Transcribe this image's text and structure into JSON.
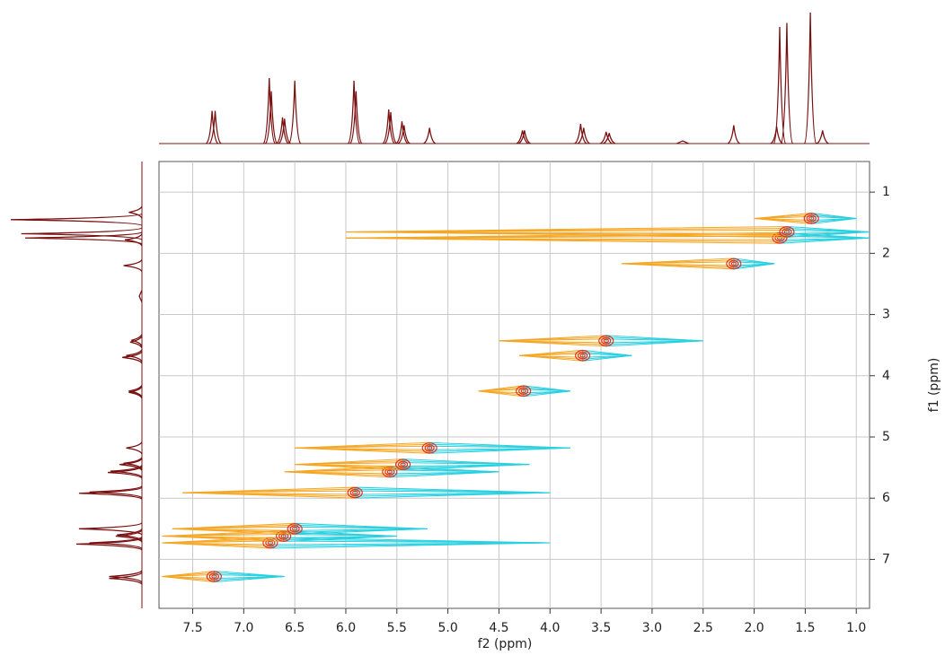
{
  "chart_data": {
    "type": "contour2d",
    "x_label": "f2 (ppm)",
    "y_label": "f1 (ppm)",
    "xlim": [
      7.83,
      0.87
    ],
    "ylim": [
      0.5,
      7.8
    ],
    "xticks": [
      7.5,
      {
        "value": 7,
        "label": "7.0"
      },
      6.5,
      {
        "value": 6,
        "label": "6.0"
      },
      5.5,
      {
        "value": 5,
        "label": "5.0"
      },
      4.5,
      {
        "value": 4,
        "label": "4.0"
      },
      3.5,
      {
        "value": 3,
        "label": "3.0"
      },
      2.5,
      {
        "value": 2,
        "label": "2.0"
      },
      1.5,
      {
        "value": 1,
        "label": "1.0"
      }
    ],
    "yticks": [
      1,
      2,
      3,
      4,
      5,
      6,
      7
    ],
    "grid": true,
    "projection": {
      "color": "#7a1010",
      "x": [
        7.31,
        7.28,
        6.75,
        6.73,
        6.62,
        6.6,
        6.5,
        5.92,
        5.9,
        5.58,
        5.56,
        5.45,
        5.43,
        5.18,
        4.27,
        4.25,
        3.7,
        3.67,
        3.45,
        3.42,
        2.7,
        2.2,
        1.78,
        1.75,
        1.68,
        1.45,
        1.33
      ],
      "values": [
        25,
        25,
        50,
        40,
        20,
        19,
        48,
        48,
        40,
        26,
        24,
        17,
        14,
        12,
        10,
        10,
        15,
        12,
        9,
        8,
        2,
        14,
        13,
        89,
        92,
        100,
        10
      ]
    },
    "cross_peaks": {
      "colors": {
        "left": "#f5a623",
        "right": "#29d0e0",
        "center": "#e0301e"
      },
      "x": [
        7.29,
        6.74,
        6.61,
        6.5,
        5.91,
        5.57,
        5.44,
        5.18,
        4.26,
        3.68,
        3.45,
        2.2,
        1.75,
        1.68,
        1.44
      ],
      "y": [
        7.28,
        6.73,
        6.62,
        6.5,
        5.91,
        5.57,
        5.45,
        5.18,
        4.25,
        3.67,
        3.43,
        2.17,
        1.75,
        1.65,
        1.43
      ],
      "left": [
        7.8,
        7.8,
        7.8,
        7.7,
        7.6,
        6.6,
        6.5,
        6.5,
        4.7,
        4.3,
        4.5,
        3.3,
        6.0,
        6.0,
        2.0
      ],
      "right": [
        6.6,
        4.0,
        5.5,
        5.2,
        4.0,
        4.5,
        4.2,
        3.8,
        3.8,
        3.2,
        2.5,
        1.8,
        0.87,
        0.87,
        1.0
      ]
    }
  }
}
